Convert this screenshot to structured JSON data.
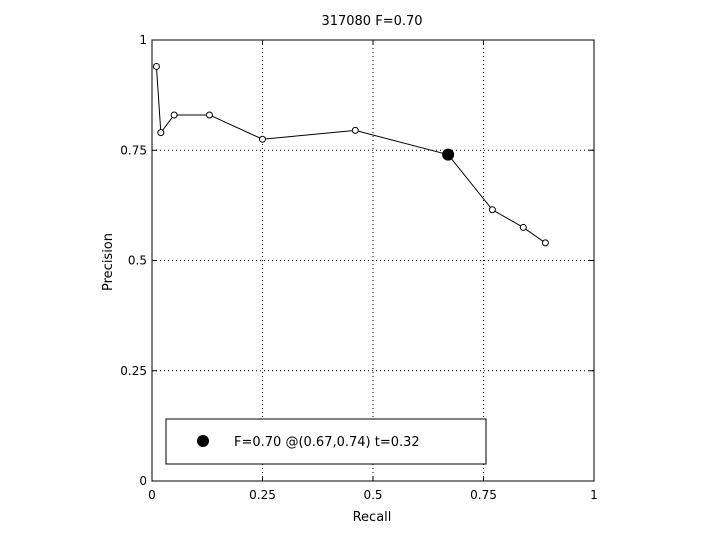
{
  "chart_data": {
    "type": "line",
    "title": "317080 F=0.70",
    "xlabel": "Recall",
    "ylabel": "Precision",
    "xlim": [
      0,
      1
    ],
    "ylim": [
      0,
      1
    ],
    "grid": true,
    "xticks": [
      0,
      0.25,
      0.5,
      0.75,
      1
    ],
    "yticks": [
      0,
      0.25,
      0.5,
      0.75,
      1
    ],
    "xtick_labels": [
      "0",
      "0.25",
      "0.5",
      "0.75",
      "1"
    ],
    "ytick_labels": [
      "0",
      "0.25",
      "0.5",
      "0.75",
      "1"
    ],
    "series": [
      {
        "x": [
          0.01,
          0.02,
          0.05,
          0.13,
          0.25,
          0.46,
          0.67,
          0.77,
          0.84,
          0.89
        ],
        "y": [
          0.94,
          0.79,
          0.83,
          0.83,
          0.775,
          0.795,
          0.74,
          0.615,
          0.575,
          0.54
        ],
        "color": "#000000",
        "marker": "open-circle"
      }
    ],
    "highlight_point": {
      "x": 0.67,
      "y": 0.74,
      "color": "#000000",
      "marker": "filled-circle"
    },
    "legend": {
      "position": "bottom-left",
      "entries": [
        {
          "label": "F=0.70 @(0.67,0.74) t=0.32",
          "marker": "filled-circle"
        }
      ]
    }
  }
}
